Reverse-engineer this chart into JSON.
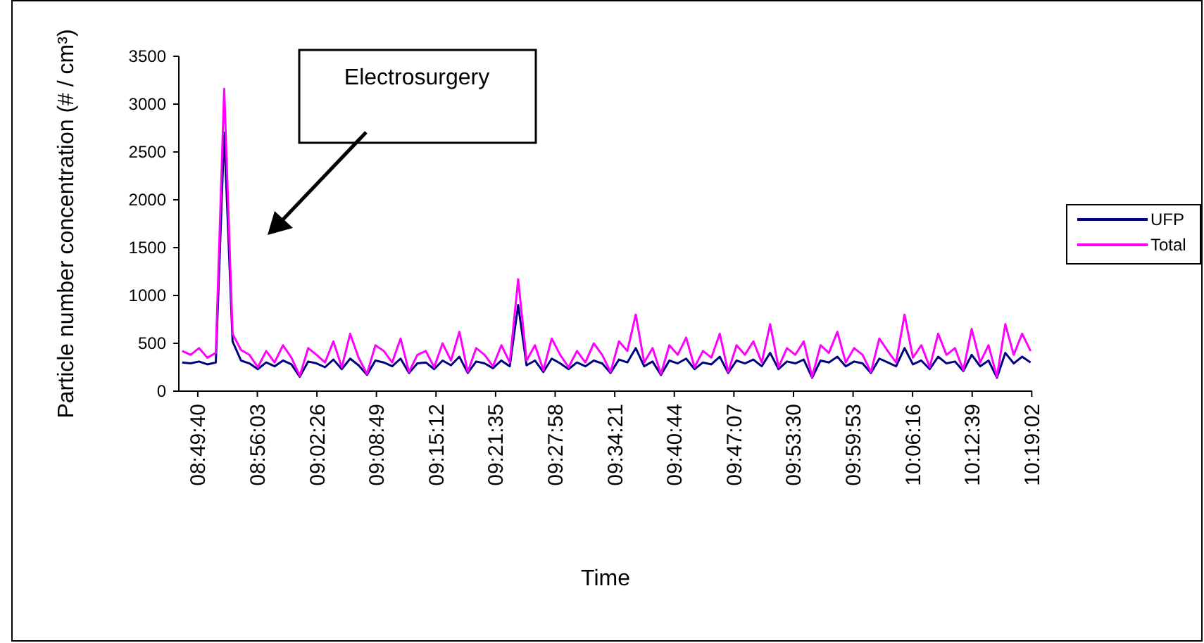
{
  "chart_data": {
    "type": "line",
    "xlabel": "Time",
    "ylabel": "Particle number concentration (# / cm³)",
    "annotations": [
      "Electrosurgery"
    ],
    "x": [
      8.8,
      8.815,
      8.83,
      8.845,
      8.86,
      8.875,
      8.89,
      8.905,
      8.92,
      8.935,
      8.95,
      8.965,
      8.98,
      8.995,
      9.01,
      9.025,
      9.04,
      9.055,
      9.07,
      9.085,
      9.1,
      9.115,
      9.13,
      9.145,
      9.16,
      9.175,
      9.19,
      9.205,
      9.22,
      9.235,
      9.25,
      9.265,
      9.28,
      9.295,
      9.31,
      9.325,
      9.34,
      9.355,
      9.37,
      9.385,
      9.4,
      9.415,
      9.43,
      9.445,
      9.46,
      9.475,
      9.49,
      9.505,
      9.52,
      9.535,
      9.55,
      9.565,
      9.58,
      9.595,
      9.61,
      9.625,
      9.64,
      9.655,
      9.67,
      9.685,
      9.7,
      9.715,
      9.73,
      9.745,
      9.76,
      9.775,
      9.79,
      9.805,
      9.82,
      9.835,
      9.85,
      9.865,
      9.88,
      9.895,
      9.91,
      9.925,
      9.94,
      9.955,
      9.97,
      9.985,
      10.0,
      10.015,
      10.03,
      10.045,
      10.06,
      10.075,
      10.09,
      10.105,
      10.12,
      10.135,
      10.15,
      10.165,
      10.18,
      10.195,
      10.21,
      10.225,
      10.24,
      10.255,
      10.27,
      10.285,
      10.3,
      10.315
    ],
    "series": [
      {
        "name": "UFP",
        "color": "#000080",
        "values": [
          300,
          290,
          310,
          280,
          300,
          2700,
          520,
          320,
          290,
          230,
          300,
          260,
          320,
          280,
          150,
          310,
          290,
          250,
          330,
          230,
          340,
          270,
          170,
          320,
          300,
          260,
          340,
          190,
          290,
          300,
          230,
          320,
          270,
          360,
          190,
          310,
          290,
          240,
          320,
          260,
          900,
          270,
          320,
          200,
          340,
          290,
          230,
          300,
          260,
          320,
          290,
          190,
          330,
          300,
          450,
          260,
          310,
          170,
          320,
          290,
          340,
          230,
          300,
          280,
          360,
          190,
          320,
          290,
          330,
          260,
          400,
          230,
          310,
          290,
          330,
          140,
          320,
          300,
          360,
          260,
          310,
          290,
          190,
          340,
          300,
          260,
          450,
          280,
          320,
          230,
          360,
          290,
          310,
          210,
          380,
          260,
          320,
          140,
          400,
          290,
          360,
          300
        ]
      },
      {
        "name": "Total",
        "color": "#ff00ff",
        "values": [
          420,
          380,
          450,
          350,
          400,
          3160,
          600,
          430,
          380,
          250,
          420,
          300,
          480,
          350,
          160,
          450,
          380,
          300,
          520,
          250,
          600,
          350,
          180,
          480,
          420,
          300,
          550,
          200,
          380,
          420,
          250,
          500,
          320,
          620,
          200,
          450,
          380,
          260,
          480,
          300,
          1170,
          320,
          480,
          220,
          550,
          380,
          250,
          420,
          300,
          500,
          380,
          200,
          520,
          420,
          800,
          300,
          450,
          180,
          480,
          380,
          560,
          250,
          420,
          350,
          600,
          200,
          480,
          380,
          520,
          300,
          700,
          250,
          450,
          380,
          520,
          150,
          480,
          400,
          620,
          300,
          450,
          380,
          200,
          550,
          420,
          300,
          800,
          350,
          480,
          250,
          600,
          380,
          450,
          220,
          650,
          300,
          480,
          150,
          700,
          380,
          600,
          420
        ]
      }
    ],
    "xlim": [
      8.794,
      10.318
    ],
    "xticks": [
      {
        "value": 8.8278,
        "label": "08:49:40"
      },
      {
        "value": 8.9342,
        "label": "08:56:03"
      },
      {
        "value": 9.0406,
        "label": "09:02:26"
      },
      {
        "value": 9.1469,
        "label": "09:08:49"
      },
      {
        "value": 9.2533,
        "label": "09:15:12"
      },
      {
        "value": 9.3597,
        "label": "09:21:35"
      },
      {
        "value": 9.4661,
        "label": "09:27:58"
      },
      {
        "value": 9.5725,
        "label": "09:34:21"
      },
      {
        "value": 9.6789,
        "label": "09:40:44"
      },
      {
        "value": 9.7853,
        "label": "09:47:07"
      },
      {
        "value": 9.8917,
        "label": "09:53:30"
      },
      {
        "value": 9.9981,
        "label": "09:59:53"
      },
      {
        "value": 10.1044,
        "label": "10:06:16"
      },
      {
        "value": 10.2108,
        "label": "10:12:39"
      },
      {
        "value": 10.3172,
        "label": "10:19:02"
      }
    ],
    "ylim": [
      0,
      3500
    ],
    "yticks": [
      0,
      500,
      1000,
      1500,
      2000,
      2500,
      3000,
      3500
    ],
    "grid": false,
    "legend": "right",
    "marker": "none",
    "line_style": "solid"
  }
}
